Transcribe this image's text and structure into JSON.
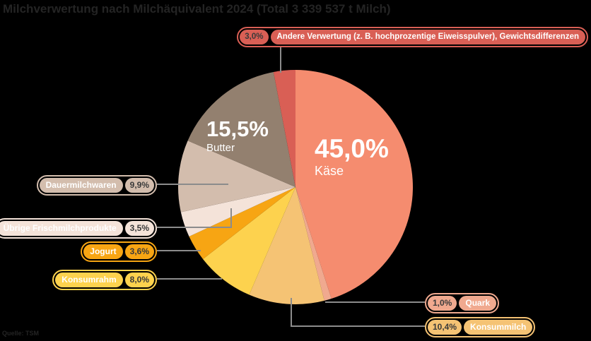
{
  "title": "Milchverwertung nach Milchäquivalent 2024 (Total 3 339 537 t Milch)",
  "source_note": "Quelle: TSM",
  "colors": {
    "background": "#000000",
    "connector": "#8C8C8C",
    "pct_text": "#3A3A3A",
    "label_text": "#FFFFFF",
    "title_text": "#242424"
  },
  "chart_data": {
    "type": "pie",
    "title": "Milchverwertung nach Milchäquivalent 2024 (Total 3 339 537 t Milch)",
    "unit": "%",
    "direction": "clockwise",
    "start_angle_deg": 0,
    "legend_position": "callout-pills",
    "slices": [
      {
        "id": "kaese",
        "label": "Käse",
        "value": 45.0,
        "pct_text": "45,0%",
        "color": "#F58C6F"
      },
      {
        "id": "quark",
        "label": "Quark",
        "value": 1.0,
        "pct_text": "1,0%",
        "color": "#F0A98F"
      },
      {
        "id": "konsummilch",
        "label": "Konsummilch",
        "value": 10.4,
        "pct_text": "10,4%",
        "color": "#F5C374"
      },
      {
        "id": "konsumrahm",
        "label": "Konsumrahm",
        "value": 8.0,
        "pct_text": "8,0%",
        "color": "#FDD24E"
      },
      {
        "id": "jogurt",
        "label": "Jogurt",
        "value": 3.6,
        "pct_text": "3,6%",
        "color": "#F7A513"
      },
      {
        "id": "uebrige-frischmilchprodukte",
        "label": "Übrige Frischmilchprodukte",
        "value": 3.5,
        "pct_text": "3,5%",
        "color": "#F4E3D9"
      },
      {
        "id": "dauermilchwaren",
        "label": "Dauermilchwaren",
        "value": 9.9,
        "pct_text": "9,9%",
        "color": "#D3BDAD"
      },
      {
        "id": "butter",
        "label": "Butter",
        "value": 15.5,
        "pct_text": "15,5%",
        "color": "#93806F"
      },
      {
        "id": "andere-verwertung",
        "label": "Andere Verwertung (z. B. hochprozentige Eiweisspulver), Gewichtsdifferenzen",
        "value": 3.0,
        "pct_text": "3,0%",
        "color": "#D95F55"
      }
    ]
  }
}
